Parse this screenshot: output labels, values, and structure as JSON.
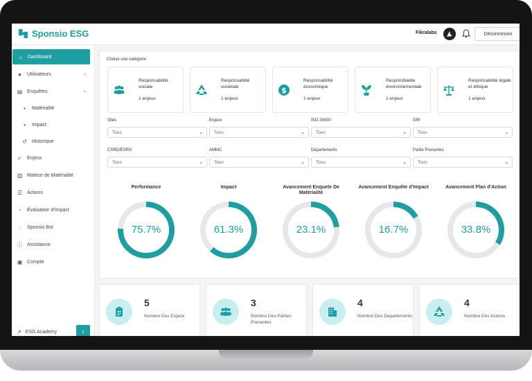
{
  "app": {
    "name": "Sponsio ESG"
  },
  "header": {
    "user": "Fikralabs",
    "logout": "Déconnexion"
  },
  "sidebar": {
    "items": [
      {
        "label": "Dashboard",
        "icon": "home-icon"
      },
      {
        "label": "Utilisateurs",
        "icon": "users-icon"
      },
      {
        "label": "Enquêtes",
        "icon": "clipboard-icon"
      },
      {
        "label": "Matérialité",
        "icon": "doc-icon"
      },
      {
        "label": "Impact",
        "icon": "doc-icon"
      },
      {
        "label": "Historique",
        "icon": "history-icon"
      },
      {
        "label": "Enjeux",
        "icon": "check-icon"
      },
      {
        "label": "Matrice de Matérialité",
        "icon": "chart-icon"
      },
      {
        "label": "Actions",
        "icon": "list-icon"
      },
      {
        "label": "Évaluation d'Impact",
        "icon": "pie-icon"
      },
      {
        "label": "Sponsio Bot",
        "icon": "chat-icon"
      },
      {
        "label": "Assistance",
        "icon": "info-icon"
      },
      {
        "label": "Compte",
        "icon": "lock-icon"
      }
    ],
    "academy": "ESG Academy"
  },
  "categories": {
    "title": "Choisir une catégorie:",
    "items": [
      {
        "name": "Responsabilité sociale",
        "count": "1 enjeux",
        "icon": "people-icon"
      },
      {
        "name": "Responsablité sociétale",
        "count": "1 enjeux",
        "icon": "recycle-icon"
      },
      {
        "name": "Responsabilité économique",
        "count": "1 enjeux",
        "icon": "dollar-icon"
      },
      {
        "name": "Responsbailite environnementale",
        "count": "1 enjeux",
        "icon": "plant-icon"
      },
      {
        "name": "Responsabilité légale et éthique",
        "count": "1 enjeux",
        "icon": "scale-icon"
      }
    ]
  },
  "filters": [
    {
      "label": "Sites",
      "value": "Tous"
    },
    {
      "label": "Enjeux",
      "value": "Tous"
    },
    {
      "label": "ISO 26000",
      "value": "Tous"
    },
    {
      "label": "GRI",
      "value": "Tous"
    },
    {
      "label": "CSRD/ESRS",
      "value": "Tous"
    },
    {
      "label": "AMMC",
      "value": "Tous"
    },
    {
      "label": "Départements",
      "value": "Tous"
    },
    {
      "label": "Partie Prenantes",
      "value": "Tous"
    }
  ],
  "gauges": [
    {
      "title": "Performance",
      "display": "75.7%",
      "value": 75.7
    },
    {
      "title": "Impact",
      "display": "61.3%",
      "value": 61.3
    },
    {
      "title": "Avancement Enquete De Matérialité",
      "display": "23.1%",
      "value": 23.1
    },
    {
      "title": "Avancement Enquête d'Impact",
      "display": "16.7%",
      "value": 16.7
    },
    {
      "title": "Avancement Plan d'Action",
      "display": "33.8%",
      "value": 33.8
    }
  ],
  "stats": [
    {
      "number": "5",
      "label": "Nombre Des Enjeux",
      "icon": "clipboard-icon"
    },
    {
      "number": "3",
      "label": "Nombre Des Parties Prenantes",
      "icon": "people-icon"
    },
    {
      "number": "4",
      "label": "Nombre Des Départements",
      "icon": "building-icon"
    },
    {
      "number": "4",
      "label": "Nombre Des Actions",
      "icon": "recycle-icon"
    }
  ],
  "colors": {
    "accent": "#1f9ea2",
    "track": "#e6e7e9",
    "stat_circle": "#c9eef0"
  }
}
